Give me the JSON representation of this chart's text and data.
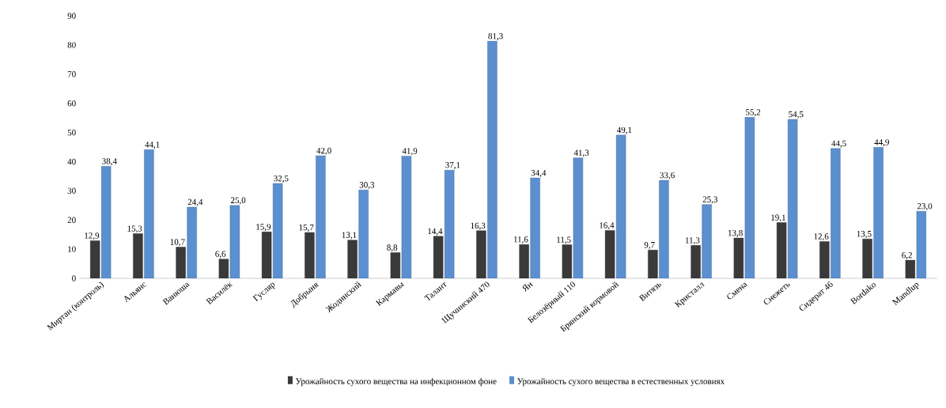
{
  "chart_data": {
    "type": "bar",
    "categories": [
      "Миртан (контроль)",
      "Альянс",
      "Ванюша",
      "Василёк",
      "Гусляр",
      "Добрыня",
      "Жодинский",
      "Кармавы",
      "Талант",
      "Щучинский 470",
      "Ян",
      "Белозёрный 110",
      "Брянский кормовой",
      "Витязь",
      "Кристалл",
      "Смена",
      "Снежеть",
      "Сидерат 46",
      "Bordako",
      "Mandlup"
    ],
    "series": [
      {
        "name": "Урожайность сухого вещества на инфекционном фоне",
        "color": "#3a3a3a",
        "values": [
          12.9,
          15.3,
          10.7,
          6.6,
          15.9,
          15.7,
          13.1,
          8.8,
          14.4,
          16.3,
          11.6,
          11.5,
          16.4,
          9.7,
          11.3,
          13.8,
          19.1,
          12.6,
          13.5,
          6.2
        ],
        "value_labels": [
          "12,9",
          "15,3",
          "10,7",
          "6,6",
          "15,9",
          "15,7",
          "13,1",
          "8,8",
          "14,4",
          "16,3",
          "11,6",
          "11,5",
          "16,4",
          "9,7",
          "11,3",
          "13,8",
          "19,1",
          "12,6",
          "13,5",
          "6,2"
        ]
      },
      {
        "name": "Урожайность сухого вещества в естественных условиях",
        "color": "#5b8fd0",
        "values": [
          38.4,
          44.1,
          24.4,
          25.0,
          32.5,
          42.0,
          30.3,
          41.9,
          37.1,
          81.3,
          34.4,
          41.3,
          49.1,
          33.6,
          25.3,
          55.2,
          54.5,
          44.5,
          44.9,
          23.0
        ],
        "value_labels": [
          "38,4",
          "44,1",
          "24,4",
          "25,0",
          "32,5",
          "42,0",
          "30,3",
          "41,9",
          "37,1",
          "81,3",
          "34,4",
          "41,3",
          "49,1",
          "33,6",
          "25,3",
          "55,2",
          "54,5",
          "44,5",
          "44,9",
          "23,0"
        ]
      }
    ],
    "ylim": [
      0,
      90
    ],
    "yticks": [
      0,
      10,
      20,
      30,
      40,
      50,
      60,
      70,
      80,
      90
    ],
    "legend": "bottom"
  }
}
